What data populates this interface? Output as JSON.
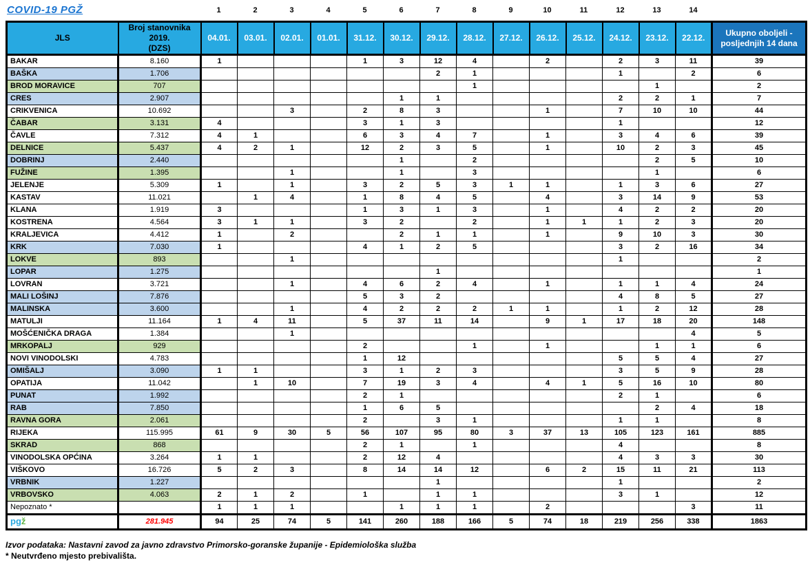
{
  "title": "COVID-19  PGŽ",
  "table": {
    "col_numbers": [
      "1",
      "2",
      "3",
      "4",
      "5",
      "6",
      "7",
      "8",
      "9",
      "10",
      "11",
      "12",
      "13",
      "14"
    ],
    "headers": {
      "jls": "JLS",
      "population": "Broj stanovnika\n2019.\n(DZS)",
      "dates": [
        "04.01.",
        "03.01.",
        "02.01.",
        "01.01.",
        "31.12.",
        "30.12.",
        "29.12.",
        "28.12.",
        "27.12.",
        "26.12.",
        "25.12.",
        "24.12.",
        "23.12.",
        "22.12."
      ],
      "total": "Ukupno oboljeli - posljednjih 14 dana"
    },
    "rows": [
      {
        "name": "BAKAR",
        "population": "8.160",
        "color": "white",
        "values": [
          "1",
          "",
          "",
          "",
          "1",
          "3",
          "12",
          "4",
          "",
          "2",
          "",
          "2",
          "3",
          "11"
        ],
        "total": "39"
      },
      {
        "name": "BAŠKA",
        "population": "1.706",
        "color": "blue",
        "values": [
          "",
          "",
          "",
          "",
          "",
          "",
          "2",
          "1",
          "",
          "",
          "",
          "1",
          "",
          "2"
        ],
        "total": "6"
      },
      {
        "name": "BROD MORAVICE",
        "population": "707",
        "color": "green",
        "values": [
          "",
          "",
          "",
          "",
          "",
          "",
          "",
          "1",
          "",
          "",
          "",
          "",
          "1",
          ""
        ],
        "total": "2"
      },
      {
        "name": "CRES",
        "population": "2.907",
        "color": "blue",
        "values": [
          "",
          "",
          "",
          "",
          "",
          "1",
          "1",
          "",
          "",
          "",
          "",
          "2",
          "2",
          "1"
        ],
        "total": "7"
      },
      {
        "name": "CRIKVENICA",
        "population": "10.692",
        "color": "white",
        "values": [
          "",
          "",
          "3",
          "",
          "2",
          "8",
          "3",
          "",
          "",
          "1",
          "",
          "7",
          "10",
          "10"
        ],
        "total": "44"
      },
      {
        "name": "ČABAR",
        "population": "3.131",
        "color": "green",
        "values": [
          "4",
          "",
          "",
          "",
          "3",
          "1",
          "3",
          "",
          "",
          "",
          "",
          "1",
          "",
          ""
        ],
        "total": "12"
      },
      {
        "name": "ČAVLE",
        "population": "7.312",
        "color": "white",
        "values": [
          "4",
          "1",
          "",
          "",
          "6",
          "3",
          "4",
          "7",
          "",
          "1",
          "",
          "3",
          "4",
          "6"
        ],
        "total": "39"
      },
      {
        "name": "DELNICE",
        "population": "5.437",
        "color": "green",
        "values": [
          "4",
          "2",
          "1",
          "",
          "12",
          "2",
          "3",
          "5",
          "",
          "1",
          "",
          "10",
          "2",
          "3"
        ],
        "total": "45"
      },
      {
        "name": "DOBRINJ",
        "population": "2.440",
        "color": "blue",
        "values": [
          "",
          "",
          "",
          "",
          "",
          "1",
          "",
          "2",
          "",
          "",
          "",
          "",
          "2",
          "5"
        ],
        "total": "10"
      },
      {
        "name": "FUŽINE",
        "population": "1.395",
        "color": "green",
        "values": [
          "",
          "",
          "1",
          "",
          "",
          "1",
          "",
          "3",
          "",
          "",
          "",
          "",
          "1",
          ""
        ],
        "total": "6"
      },
      {
        "name": "JELENJE",
        "population": "5.309",
        "color": "white",
        "values": [
          "1",
          "",
          "1",
          "",
          "3",
          "2",
          "5",
          "3",
          "1",
          "1",
          "",
          "1",
          "3",
          "6"
        ],
        "total": "27"
      },
      {
        "name": "KASTAV",
        "population": "11.021",
        "color": "white",
        "values": [
          "",
          "1",
          "4",
          "",
          "1",
          "8",
          "4",
          "5",
          "",
          "4",
          "",
          "3",
          "14",
          "9"
        ],
        "total": "53"
      },
      {
        "name": "KLANA",
        "population": "1.919",
        "color": "white",
        "values": [
          "3",
          "",
          "",
          "",
          "1",
          "3",
          "1",
          "3",
          "",
          "1",
          "",
          "4",
          "2",
          "2"
        ],
        "total": "20"
      },
      {
        "name": "KOSTRENA",
        "population": "4.564",
        "color": "white",
        "values": [
          "3",
          "1",
          "1",
          "",
          "3",
          "2",
          "",
          "2",
          "",
          "1",
          "1",
          "1",
          "2",
          "3"
        ],
        "total": "20"
      },
      {
        "name": "KRALJEVICA",
        "population": "4.412",
        "color": "white",
        "values": [
          "1",
          "",
          "2",
          "",
          "",
          "2",
          "1",
          "1",
          "",
          "1",
          "",
          "9",
          "10",
          "3"
        ],
        "total": "30"
      },
      {
        "name": "KRK",
        "population": "7.030",
        "color": "blue",
        "values": [
          "1",
          "",
          "",
          "",
          "4",
          "1",
          "2",
          "5",
          "",
          "",
          "",
          "3",
          "2",
          "16"
        ],
        "total": "34"
      },
      {
        "name": "LOKVE",
        "population": "893",
        "color": "green",
        "values": [
          "",
          "",
          "1",
          "",
          "",
          "",
          "",
          "",
          "",
          "",
          "",
          "1",
          "",
          ""
        ],
        "total": "2"
      },
      {
        "name": "LOPAR",
        "population": "1.275",
        "color": "blue",
        "values": [
          "",
          "",
          "",
          "",
          "",
          "",
          "1",
          "",
          "",
          "",
          "",
          "",
          "",
          ""
        ],
        "total": "1"
      },
      {
        "name": "LOVRAN",
        "population": "3.721",
        "color": "white",
        "values": [
          "",
          "",
          "1",
          "",
          "4",
          "6",
          "2",
          "4",
          "",
          "1",
          "",
          "1",
          "1",
          "4"
        ],
        "total": "24"
      },
      {
        "name": "MALI LOŠINJ",
        "population": "7.876",
        "color": "blue",
        "values": [
          "",
          "",
          "",
          "",
          "5",
          "3",
          "2",
          "",
          "",
          "",
          "",
          "4",
          "8",
          "5"
        ],
        "total": "27"
      },
      {
        "name": "MALINSKA",
        "population": "3.600",
        "color": "blue",
        "values": [
          "",
          "",
          "1",
          "",
          "4",
          "2",
          "2",
          "2",
          "1",
          "1",
          "",
          "1",
          "2",
          "12"
        ],
        "total": "28"
      },
      {
        "name": "MATULJI",
        "population": "11.164",
        "color": "white",
        "values": [
          "1",
          "4",
          "11",
          "",
          "5",
          "37",
          "11",
          "14",
          "",
          "9",
          "1",
          "17",
          "18",
          "20"
        ],
        "total": "148"
      },
      {
        "name": "MOŠĆENIČKA DRAGA",
        "population": "1.384",
        "color": "white",
        "values": [
          "",
          "",
          "1",
          "",
          "",
          "",
          "",
          "",
          "",
          "",
          "",
          "",
          "",
          "4"
        ],
        "total": "5"
      },
      {
        "name": "MRKOPALJ",
        "population": "929",
        "color": "green",
        "values": [
          "",
          "",
          "",
          "",
          "2",
          "",
          "",
          "1",
          "",
          "1",
          "",
          "",
          "1",
          "1"
        ],
        "total": "6"
      },
      {
        "name": "NOVI VINODOLSKI",
        "population": "4.783",
        "color": "white",
        "values": [
          "",
          "",
          "",
          "",
          "1",
          "12",
          "",
          "",
          "",
          "",
          "",
          "5",
          "5",
          "4"
        ],
        "total": "27"
      },
      {
        "name": "OMIŠALJ",
        "population": "3.090",
        "color": "blue",
        "values": [
          "1",
          "1",
          "",
          "",
          "3",
          "1",
          "2",
          "3",
          "",
          "",
          "",
          "3",
          "5",
          "9"
        ],
        "total": "28"
      },
      {
        "name": "OPATIJA",
        "population": "11.042",
        "color": "white",
        "values": [
          "",
          "1",
          "10",
          "",
          "7",
          "19",
          "3",
          "4",
          "",
          "4",
          "1",
          "5",
          "16",
          "10"
        ],
        "total": "80"
      },
      {
        "name": "PUNAT",
        "population": "1.992",
        "color": "blue",
        "values": [
          "",
          "",
          "",
          "",
          "2",
          "1",
          "",
          "",
          "",
          "",
          "",
          "2",
          "1",
          ""
        ],
        "total": "6"
      },
      {
        "name": "RAB",
        "population": "7.850",
        "color": "blue",
        "values": [
          "",
          "",
          "",
          "",
          "1",
          "6",
          "5",
          "",
          "",
          "",
          "",
          "",
          "2",
          "4"
        ],
        "total": "18"
      },
      {
        "name": "RAVNA GORA",
        "population": "2.061",
        "color": "green",
        "values": [
          "",
          "",
          "",
          "",
          "2",
          "",
          "3",
          "1",
          "",
          "",
          "",
          "1",
          "1",
          ""
        ],
        "total": "8"
      },
      {
        "name": "RIJEKA",
        "population": "115.995",
        "color": "white",
        "values": [
          "61",
          "9",
          "30",
          "5",
          "56",
          "107",
          "95",
          "80",
          "3",
          "37",
          "13",
          "105",
          "123",
          "161"
        ],
        "total": "885"
      },
      {
        "name": "SKRAD",
        "population": "868",
        "color": "green",
        "values": [
          "",
          "",
          "",
          "",
          "2",
          "1",
          "",
          "1",
          "",
          "",
          "",
          "4",
          "",
          ""
        ],
        "total": "8"
      },
      {
        "name": "VINODOLSKA OPĆINA",
        "population": "3.264",
        "color": "white",
        "values": [
          "1",
          "1",
          "",
          "",
          "2",
          "12",
          "4",
          "",
          "",
          "",
          "",
          "4",
          "3",
          "3"
        ],
        "total": "30"
      },
      {
        "name": "VIŠKOVO",
        "population": "16.726",
        "color": "white",
        "values": [
          "5",
          "2",
          "3",
          "",
          "8",
          "14",
          "14",
          "12",
          "",
          "6",
          "2",
          "15",
          "11",
          "21"
        ],
        "total": "113"
      },
      {
        "name": "VRBNIK",
        "population": "1.227",
        "color": "blue",
        "values": [
          "",
          "",
          "",
          "",
          "",
          "",
          "1",
          "",
          "",
          "",
          "",
          "1",
          "",
          ""
        ],
        "total": "2"
      },
      {
        "name": "VRBOVSKO",
        "population": "4.063",
        "color": "green",
        "values": [
          "2",
          "1",
          "2",
          "",
          "1",
          "",
          "1",
          "1",
          "",
          "",
          "",
          "3",
          "1",
          ""
        ],
        "total": "12"
      },
      {
        "name": "Nepoznato *",
        "population": "",
        "color": "white",
        "muted": true,
        "values": [
          "1",
          "1",
          "1",
          "",
          "",
          "1",
          "1",
          "1",
          "",
          "2",
          "",
          "",
          "",
          "3"
        ],
        "total": "11"
      }
    ],
    "total_row": {
      "label_pg": "pg",
      "label_z": "ž",
      "population": "281.945",
      "values": [
        "94",
        "25",
        "74",
        "5",
        "141",
        "260",
        "188",
        "166",
        "5",
        "74",
        "18",
        "219",
        "256",
        "338"
      ],
      "total": "1863"
    }
  },
  "footer": {
    "source": "Izvor podataka: Nastavni zavod za javno zdravstvo Primorsko-goranske županije  - Epidemiološka služba",
    "note": "* Neutvrđeno mjesto prebivališta."
  },
  "colors": {
    "header_blue": "#27a9e1",
    "header_dark_blue": "#1b75bc",
    "row_blue": "#bdd4ec",
    "row_green": "#c9dfb1",
    "title_blue": "#1b75d1",
    "total_population_red": "#ff0000",
    "pgz_pg_blue": "#29a8df",
    "pgz_z_green": "#62b348"
  }
}
